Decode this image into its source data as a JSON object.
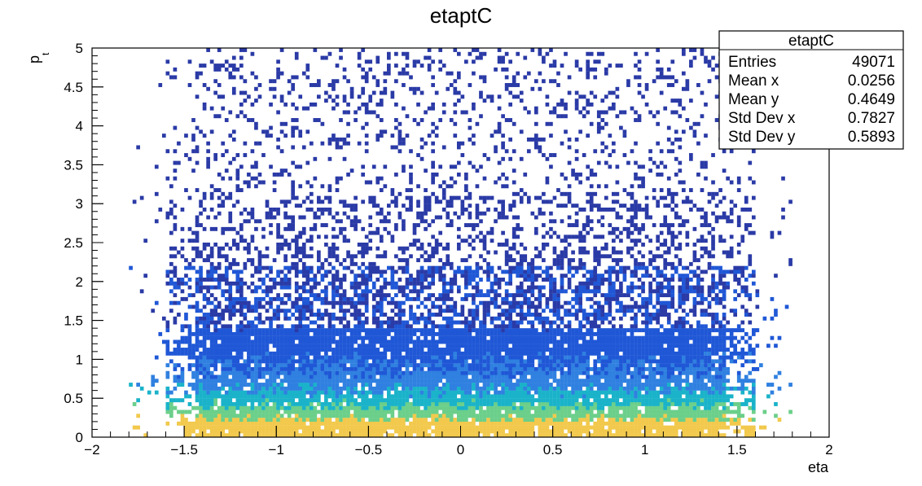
{
  "chart_data": {
    "type": "heatmap",
    "title": "etaptC",
    "xlabel": "eta",
    "ylabel_main": "p",
    "ylabel_sub": "t",
    "xlim": [
      -2,
      2
    ],
    "ylim": [
      0,
      5
    ],
    "x_ticks": [
      "−2",
      "−1.5",
      "−1",
      "−0.5",
      "0",
      "0.5",
      "1",
      "1.5",
      "2"
    ],
    "y_ticks": [
      "0",
      "0.5",
      "1",
      "1.5",
      "2",
      "2.5",
      "3",
      "3.5",
      "4",
      "4.5",
      "5"
    ],
    "x_tick_values": [
      -2,
      -1.5,
      -1,
      -0.5,
      0,
      0.5,
      1,
      1.5,
      2
    ],
    "y_tick_values": [
      0,
      0.5,
      1,
      1.5,
      2,
      2.5,
      3,
      3.5,
      4,
      4.5,
      5
    ],
    "stats": {
      "title": "etaptC",
      "rows": [
        {
          "label": "Entries",
          "value": "49071"
        },
        {
          "label": "Mean x",
          "value": "0.0256"
        },
        {
          "label": "Mean y",
          "value": "0.4649"
        },
        {
          "label": "Std Dev x",
          "value": "0.7827"
        },
        {
          "label": "Std Dev y",
          "value": "0.5893"
        }
      ]
    },
    "distribution": {
      "entries": 49071,
      "mean_x": 0.0256,
      "mean_y": 0.4649,
      "std_x": 0.7827,
      "std_y": 0.5893,
      "eta_range": [
        -1.8,
        1.8
      ]
    },
    "colors": {
      "low": "#2a3aa6",
      "mid_low": "#1f57d6",
      "mid": "#2f80e0",
      "mid_high": "#1ab3c9",
      "high": "#6bcf8a",
      "peak": "#f2c94c",
      "frame": "#000000"
    }
  }
}
